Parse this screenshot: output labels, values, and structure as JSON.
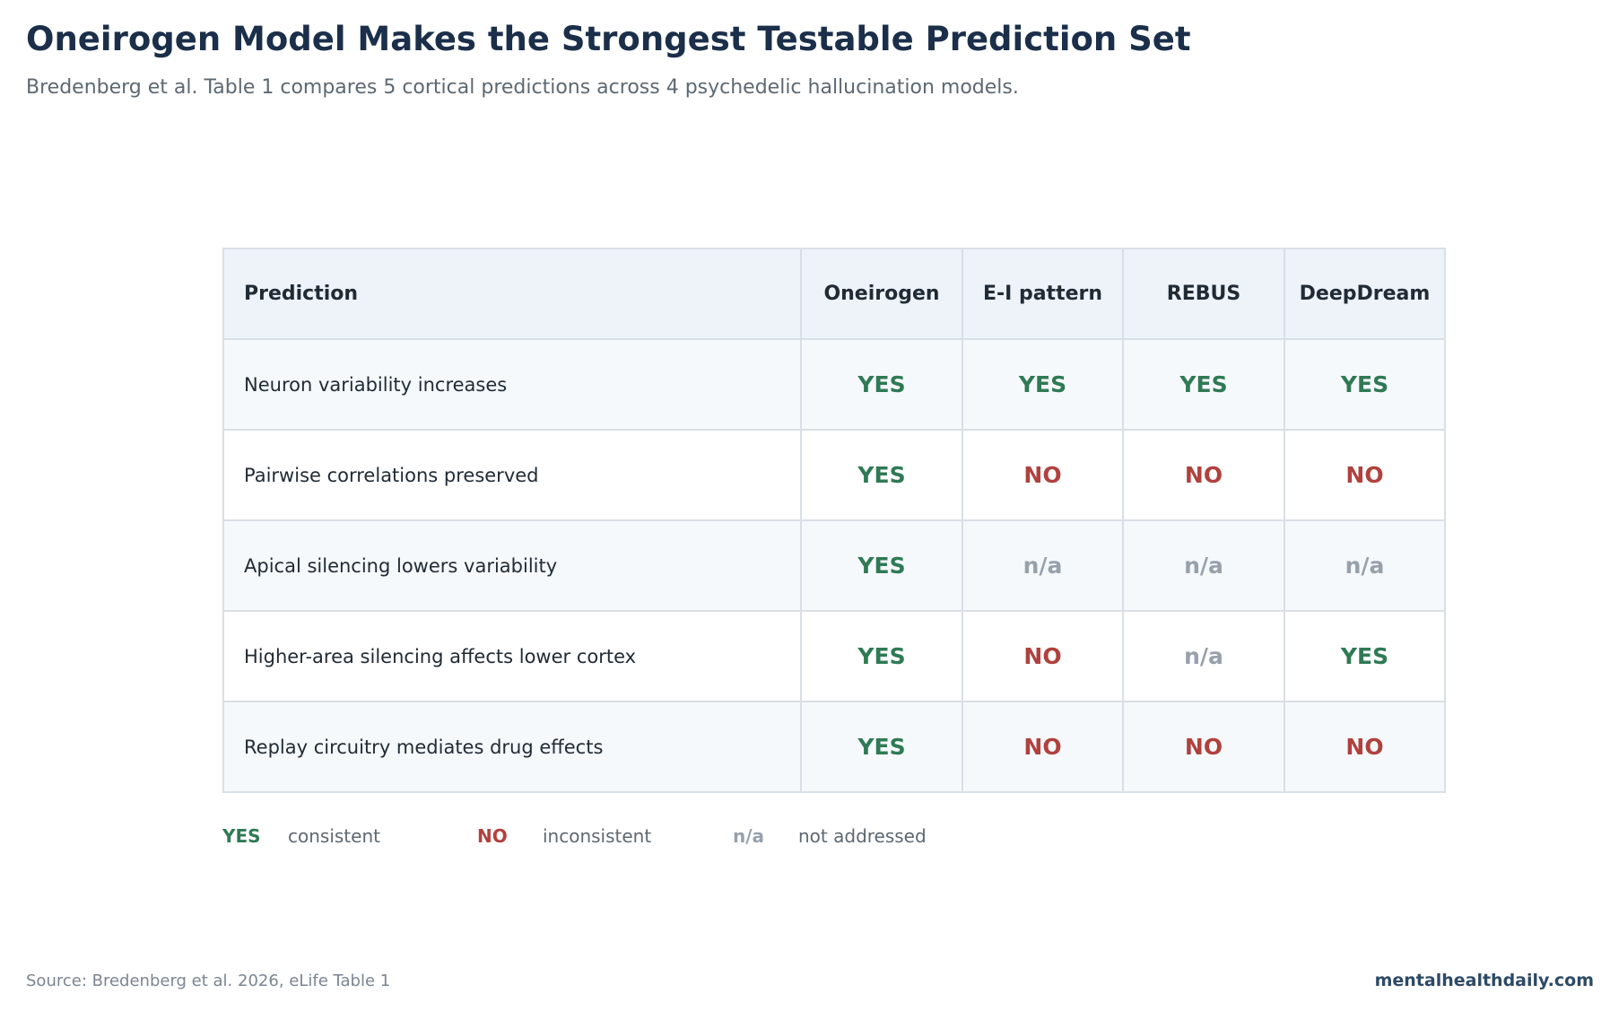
{
  "title": "Oneirogen Model Makes the Strongest Testable Prediction Set",
  "subtitle": "Bredenberg et al. Table 1 compares 5 cortical predictions across 4 psychedelic hallucination models.",
  "chart_data": {
    "type": "table",
    "columns": [
      "Prediction",
      "Oneirogen",
      "E-I pattern",
      "REBUS",
      "DeepDream"
    ],
    "rows": [
      {
        "label": "Neuron variability increases",
        "values": [
          "YES",
          "YES",
          "YES",
          "YES"
        ]
      },
      {
        "label": "Pairwise correlations preserved",
        "values": [
          "YES",
          "NO",
          "NO",
          "NO"
        ]
      },
      {
        "label": "Apical silencing lowers variability",
        "values": [
          "YES",
          "n/a",
          "n/a",
          "n/a"
        ]
      },
      {
        "label": "Higher-area silencing affects lower cortex",
        "values": [
          "YES",
          "NO",
          "n/a",
          "YES"
        ]
      },
      {
        "label": "Replay circuitry mediates drug effects",
        "values": [
          "YES",
          "NO",
          "NO",
          "NO"
        ]
      }
    ],
    "colors": {
      "YES": "#2f7a54",
      "NO": "#b0413d",
      "n/a": "#97a1ab"
    }
  },
  "legend": [
    {
      "key": "YES",
      "desc": "consistent"
    },
    {
      "key": "NO",
      "desc": "inconsistent"
    },
    {
      "key": "n/a",
      "desc": "not addressed"
    }
  ],
  "footer": {
    "source": "Source: Bredenberg et al. 2026, eLife Table 1",
    "brand": "mentalhealthdaily.com"
  }
}
